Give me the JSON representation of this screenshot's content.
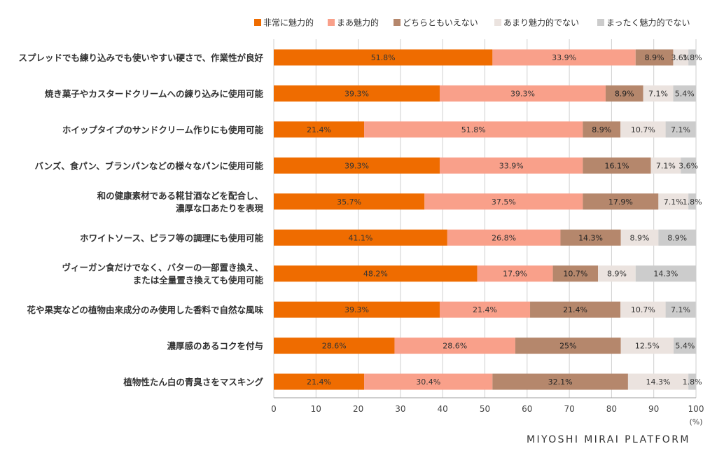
{
  "chart_data": {
    "type": "bar",
    "orientation": "horizontal",
    "stacked": true,
    "categories": [
      "スプレッドでも練り込みでも使いやすい硬さで、作業性が良好",
      "焼き菓子やカスタードクリームへの練り込みに使用可能",
      "ホイップタイプのサンドクリーム作りにも使用可能",
      "バンズ、食パン、ブランパンなどの様々なパンに使用可能",
      "和の健康素材である糀甘酒などを配合し、\n濃厚な口あたりを表現",
      "ホワイトソース、ピラフ等の調理にも使用可能",
      "ヴィーガン食だけでなく、バターの一部置き換え、\nまたは全量置き換えても使用可能",
      "花や果実などの植物由来成分のみ使用した香料で自然な風味",
      "濃厚感のあるコクを付与",
      "植物性たん白の青臭さをマスキング"
    ],
    "series": [
      {
        "name": "非常に魅力的",
        "color": "#ef6c00",
        "values": [
          51.8,
          39.3,
          21.4,
          39.3,
          35.7,
          41.1,
          48.2,
          39.3,
          28.6,
          21.4
        ],
        "labels": [
          "51.8%",
          "39.3%",
          "21.4%",
          "39.3%",
          "35.7%",
          "41.1%",
          "48.2%",
          "39.3%",
          "28.6%",
          "21.4%"
        ]
      },
      {
        "name": "まあ魅力的",
        "color": "#f9a08a",
        "values": [
          33.9,
          39.3,
          51.8,
          33.9,
          37.5,
          26.8,
          17.9,
          21.4,
          28.6,
          30.4
        ],
        "labels": [
          "33.9%",
          "39.3%",
          "51.8%",
          "33.9%",
          "37.5%",
          "26.8%",
          "17.9%",
          "21.4%",
          "28.6%",
          "30.4%"
        ]
      },
      {
        "name": "どちらともいえない",
        "color": "#b5876c",
        "values": [
          8.9,
          8.9,
          8.9,
          16.1,
          17.9,
          14.3,
          10.7,
          21.4,
          25,
          32.1
        ],
        "labels": [
          "8.9%",
          "8.9%",
          "8.9%",
          "16.1%",
          "17.9%",
          "14.3%",
          "10.7%",
          "21.4%",
          "25%",
          "32.1%"
        ]
      },
      {
        "name": "あまり魅力的でない",
        "color": "#ebe3df",
        "values": [
          3.6,
          7.1,
          10.7,
          7.1,
          7.1,
          8.9,
          8.9,
          10.7,
          12.5,
          14.3
        ],
        "labels": [
          "3.6%",
          "7.1%",
          "10.7%",
          "7.1%",
          "7.1%",
          "8.9%",
          "8.9%",
          "10.7%",
          "12.5%",
          "14.3%"
        ]
      },
      {
        "name": "まったく魅力的でない",
        "color": "#cccccc",
        "values": [
          1.8,
          5.4,
          7.1,
          3.6,
          1.8,
          8.9,
          14.3,
          7.1,
          5.4,
          1.8
        ],
        "labels": [
          "1.8%",
          "5.4%",
          "7.1%",
          "3.6%",
          "1.8%",
          "8.9%",
          "14.3%",
          "7.1%",
          "5.4%",
          "1.8%"
        ]
      }
    ],
    "xlim": [
      0,
      100
    ],
    "xticks": [
      0,
      10,
      20,
      30,
      40,
      50,
      60,
      70,
      80,
      90,
      100
    ],
    "xunit": "(%)",
    "grid": true,
    "legend_position": "top-right",
    "title": "",
    "xlabel": "",
    "ylabel": ""
  },
  "footer": {
    "brand": "MIYOSHI MIRAI PLATFORM"
  }
}
